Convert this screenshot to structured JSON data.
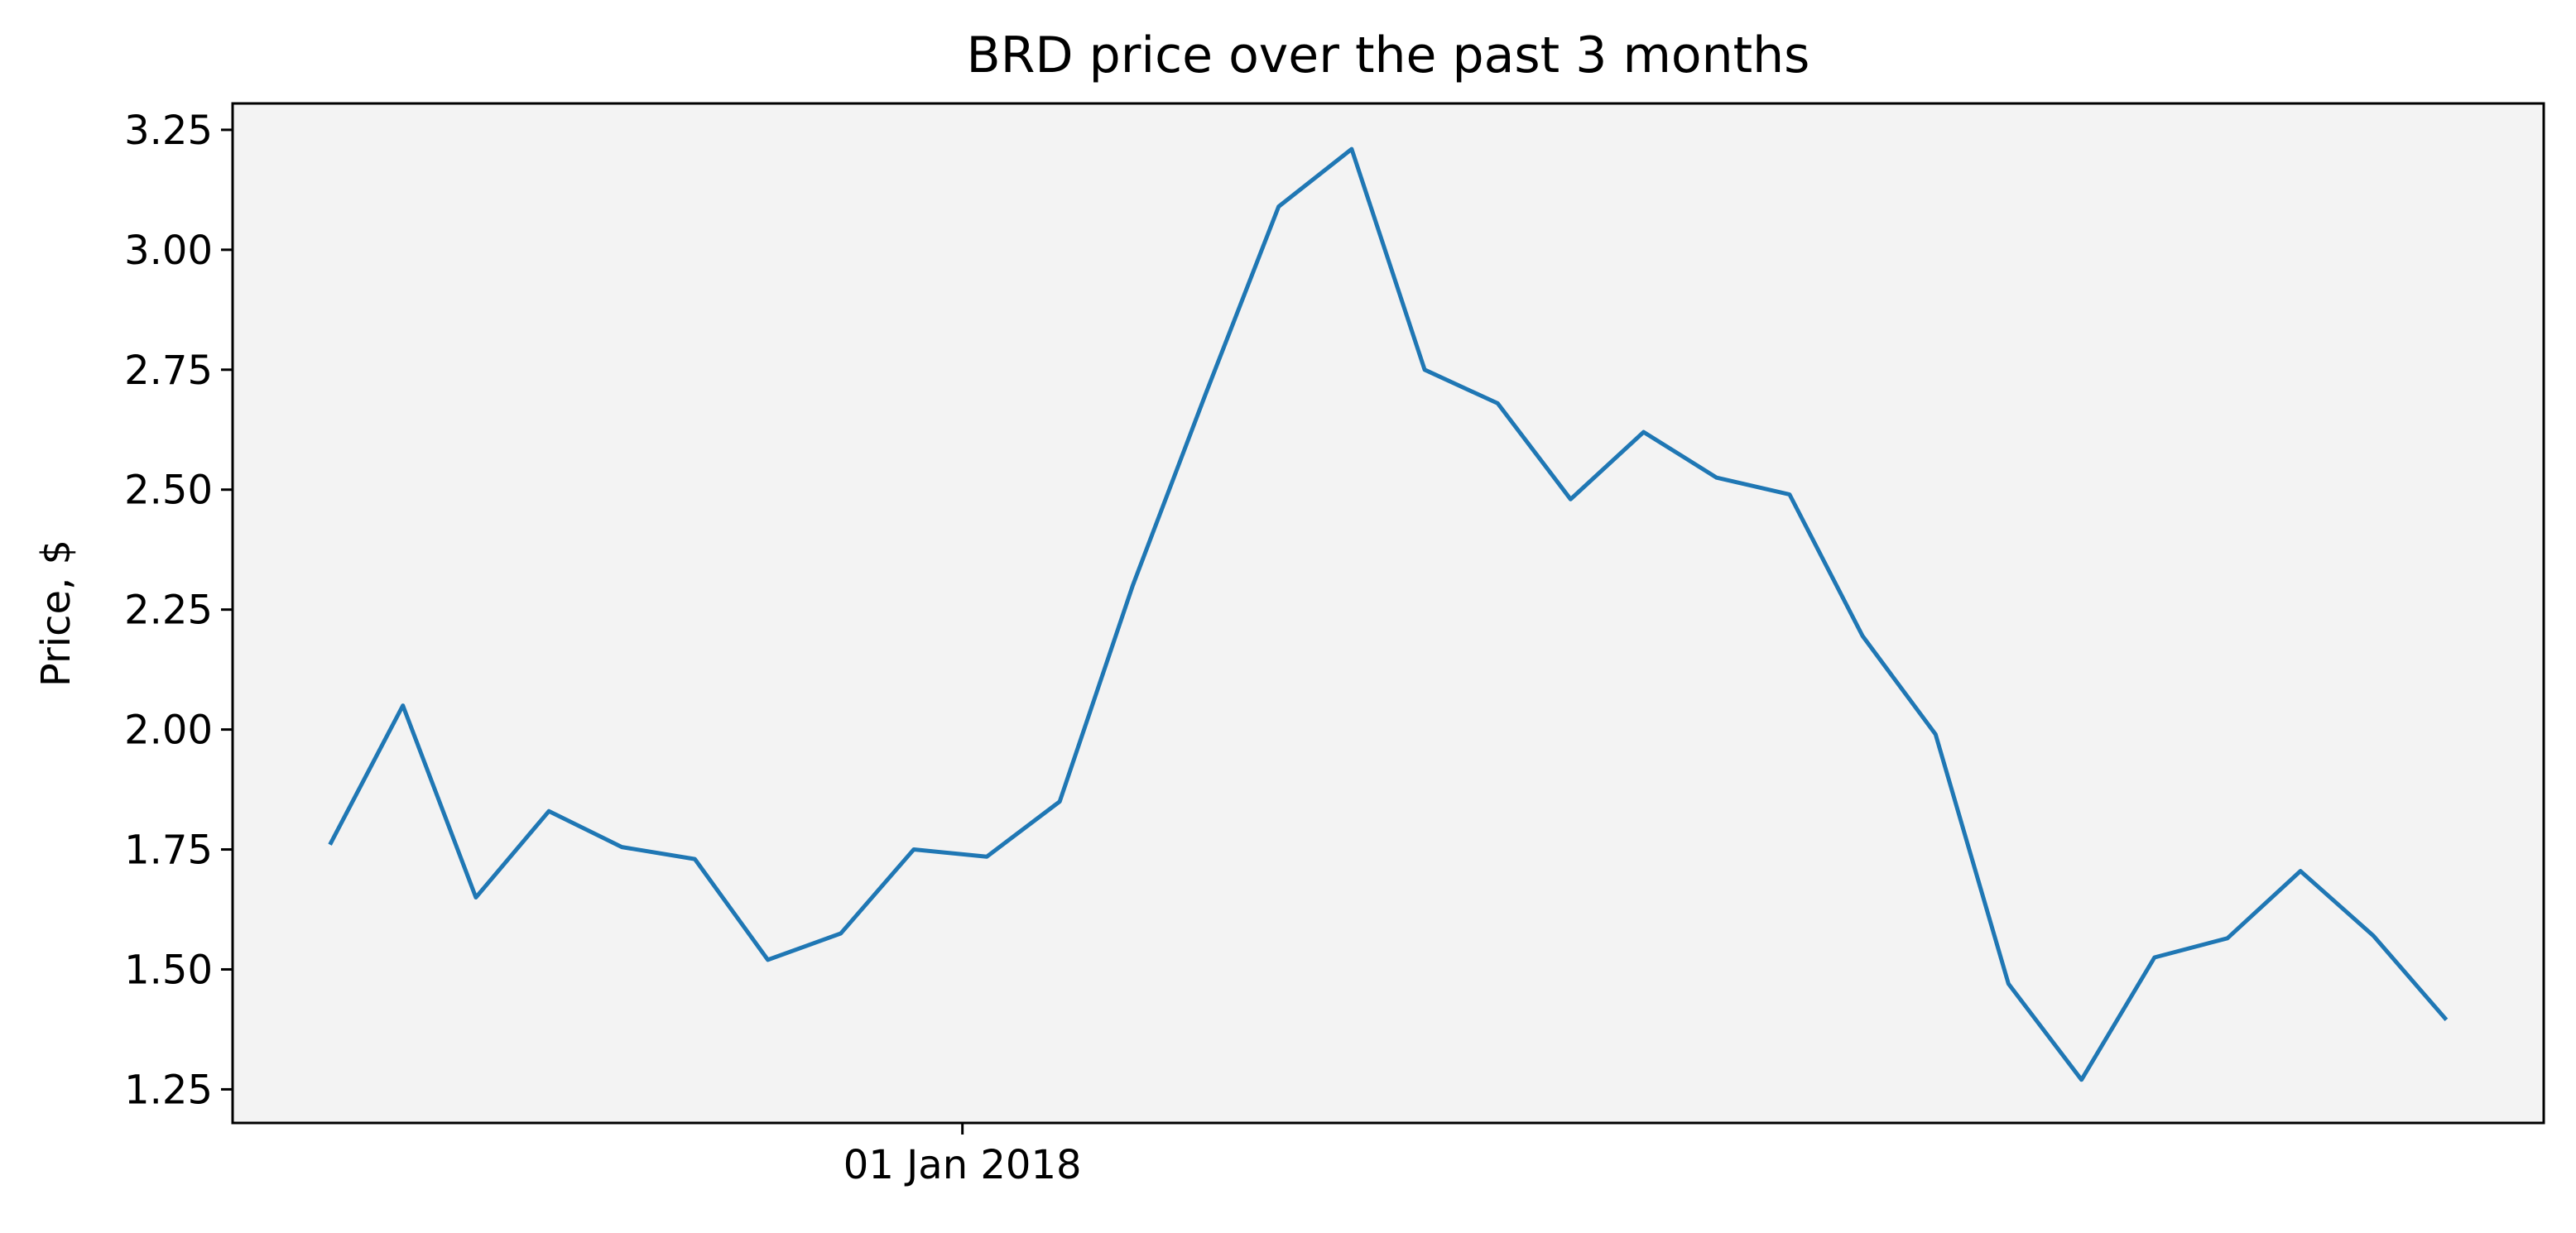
{
  "chart_data": {
    "type": "line",
    "title": "BRD price over the past 3 months",
    "xlabel": "",
    "ylabel": "Price, $",
    "x_tick_labels": [
      {
        "date": "2018-01-01",
        "label": "01 Jan 2018"
      }
    ],
    "y_ticks": [
      1.25,
      1.5,
      1.75,
      2.0,
      2.25,
      2.5,
      2.75,
      3.0,
      3.25
    ],
    "y_tick_labels": [
      "1.25",
      "1.50",
      "1.75",
      "2.00",
      "2.25",
      "2.50",
      "2.75",
      "3.00",
      "3.25"
    ],
    "ylim": [
      1.18,
      3.305
    ],
    "xlim": [
      "2017-12-02",
      "2018-03-07"
    ],
    "grid": false,
    "background_color": "#f3f3f3",
    "series": [
      {
        "color": "#1f77b4",
        "points": [
          {
            "x": "2017-12-06",
            "y": 1.76
          },
          {
            "x": "2017-12-09",
            "y": 2.05
          },
          {
            "x": "2017-12-12",
            "y": 1.65
          },
          {
            "x": "2017-12-15",
            "y": 1.83
          },
          {
            "x": "2017-12-18",
            "y": 1.755
          },
          {
            "x": "2017-12-21",
            "y": 1.73
          },
          {
            "x": "2017-12-24",
            "y": 1.52
          },
          {
            "x": "2017-12-27",
            "y": 1.575
          },
          {
            "x": "2017-12-30",
            "y": 1.75
          },
          {
            "x": "2018-01-02",
            "y": 1.735
          },
          {
            "x": "2018-01-05",
            "y": 1.85
          },
          {
            "x": "2018-01-08",
            "y": 2.3
          },
          {
            "x": "2018-01-11",
            "y": 2.7
          },
          {
            "x": "2018-01-14",
            "y": 3.09
          },
          {
            "x": "2018-01-17",
            "y": 3.21
          },
          {
            "x": "2018-01-20",
            "y": 2.75
          },
          {
            "x": "2018-01-23",
            "y": 2.68
          },
          {
            "x": "2018-01-26",
            "y": 2.48
          },
          {
            "x": "2018-01-29",
            "y": 2.62
          },
          {
            "x": "2018-02-01",
            "y": 2.525
          },
          {
            "x": "2018-02-04",
            "y": 2.49
          },
          {
            "x": "2018-02-07",
            "y": 2.195
          },
          {
            "x": "2018-02-10",
            "y": 1.99
          },
          {
            "x": "2018-02-13",
            "y": 1.47
          },
          {
            "x": "2018-02-16",
            "y": 1.27
          },
          {
            "x": "2018-02-19",
            "y": 1.525
          },
          {
            "x": "2018-02-22",
            "y": 1.565
          },
          {
            "x": "2018-02-25",
            "y": 1.705
          },
          {
            "x": "2018-02-28",
            "y": 1.57
          },
          {
            "x": "2018-03-03",
            "y": 1.395
          }
        ]
      }
    ]
  }
}
